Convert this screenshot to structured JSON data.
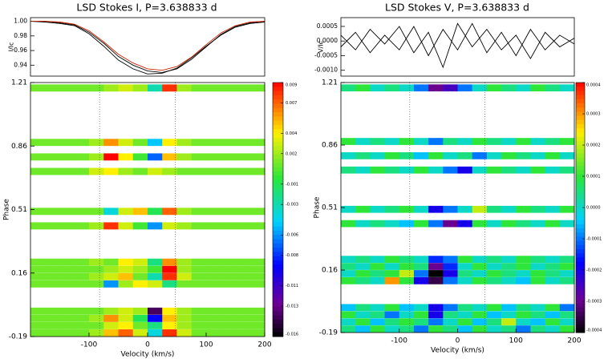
{
  "chart_data": [
    {
      "type": "line",
      "title": "LSD Stokes I, P=3.638833 d",
      "ylabel": "I/Ic",
      "x": [
        -200,
        -175,
        -150,
        -125,
        -100,
        -75,
        -50,
        -25,
        0,
        25,
        50,
        75,
        100,
        125,
        150,
        175,
        200
      ],
      "xlim": [
        -200,
        200
      ],
      "ylim": [
        0.925,
        1.005
      ],
      "yticks": [
        {
          "value": 1,
          "label": "1.00"
        },
        0.98,
        0.96,
        0.94
      ],
      "series": [
        {
          "color": "#000000",
          "values": [
            1.0,
            1.0,
            0.998,
            0.995,
            0.985,
            0.97,
            0.952,
            0.94,
            0.932,
            0.93,
            0.935,
            0.948,
            0.965,
            0.982,
            0.993,
            0.998,
            1.0
          ]
        },
        {
          "color": "#000000",
          "values": [
            1.0,
            0.999,
            0.997,
            0.994,
            0.983,
            0.966,
            0.947,
            0.935,
            0.928,
            0.929,
            0.936,
            0.95,
            0.966,
            0.981,
            0.992,
            0.997,
            0.999
          ]
        },
        {
          "color": "#cc2200",
          "values": [
            1.0,
            1.0,
            0.999,
            0.996,
            0.987,
            0.972,
            0.955,
            0.943,
            0.935,
            0.933,
            0.938,
            0.951,
            0.968,
            0.984,
            0.994,
            0.999,
            1.0
          ]
        }
      ]
    },
    {
      "type": "heatmap",
      "xlabel": "Velocity (km/s)",
      "ylabel": "Phase",
      "xlim": [
        -200,
        200
      ],
      "xticks": [
        -100,
        0,
        100,
        200
      ],
      "ylim": [
        -0.19,
        1.21
      ],
      "yticks": [
        -0.19,
        0.16,
        0.51,
        0.86,
        1.21
      ],
      "vlines": [
        -82,
        47
      ],
      "zlim": [
        -0.016,
        0.009
      ],
      "zticks": [
        0.009,
        0.007,
        0.004,
        0.002,
        -0.001,
        -0.003,
        -0.006,
        -0.008,
        -0.011,
        -0.013,
        -0.016
      ],
      "x": [
        -187.5,
        -162.5,
        -137.5,
        -112.5,
        -87.5,
        -62.5,
        -37.5,
        -12.5,
        12.5,
        37.5,
        62.5,
        87.5,
        112.5,
        137.5,
        162.5,
        187.5
      ],
      "phases": [
        -0.17,
        -0.13,
        -0.09,
        -0.05,
        0.1,
        0.14,
        0.18,
        0.22,
        0.42,
        0.5,
        0.72,
        0.8,
        0.88,
        1.18
      ],
      "z": [
        [
          0.001,
          0.001,
          0.001,
          0.001,
          0.002,
          0.005,
          0.007,
          0.003,
          -0.004,
          0.008,
          0.003,
          0.001,
          0.001,
          0.001,
          0.001,
          0.001
        ],
        [
          0.001,
          0.001,
          0.001,
          0.001,
          0.001,
          0.003,
          0.004,
          0.001,
          -0.002,
          0.004,
          0.002,
          0.001,
          0.001,
          0.001,
          0.001,
          0.001
        ],
        [
          0.001,
          0.001,
          0.001,
          0.001,
          0.002,
          0.006,
          0.003,
          -0.001,
          -0.009,
          0.005,
          0.002,
          0.001,
          0.001,
          0.001,
          0.001,
          0.001
        ],
        [
          0.001,
          0.001,
          0.001,
          0.001,
          0.001,
          0.002,
          0.003,
          0.002,
          -0.014,
          0.004,
          0.002,
          0.001,
          0.001,
          0.001,
          0.001,
          0.001
        ],
        [
          0.001,
          0.001,
          0.001,
          0.001,
          0.001,
          -0.006,
          0.002,
          0.004,
          0.003,
          -0.002,
          0.001,
          0.001,
          0.001,
          0.001,
          0.001,
          0.001
        ],
        [
          0.001,
          0.001,
          0.001,
          0.001,
          0.002,
          0.003,
          0.005,
          0.001,
          -0.003,
          0.008,
          0.003,
          0.001,
          0.001,
          0.001,
          0.001,
          0.001
        ],
        [
          0.001,
          0.001,
          0.001,
          0.001,
          0.001,
          0.002,
          0.003,
          0.002,
          0.0,
          0.009,
          0.002,
          0.001,
          0.001,
          0.001,
          0.001,
          0.001
        ],
        [
          0.001,
          0.001,
          0.001,
          0.001,
          0.002,
          0.001,
          0.004,
          0.003,
          -0.002,
          0.006,
          0.002,
          0.001,
          0.001,
          0.001,
          0.001,
          0.001
        ],
        [
          0.001,
          0.001,
          0.001,
          0.001,
          0.002,
          0.008,
          0.003,
          0.0,
          -0.006,
          0.003,
          0.002,
          0.001,
          0.001,
          0.001,
          0.001,
          0.001
        ],
        [
          0.001,
          0.001,
          0.001,
          0.001,
          0.001,
          -0.004,
          0.003,
          0.005,
          -0.001,
          0.007,
          0.002,
          0.001,
          0.001,
          0.001,
          0.001,
          0.001
        ],
        [
          0.001,
          0.001,
          0.001,
          0.001,
          0.003,
          0.004,
          0.002,
          0.001,
          0.003,
          0.002,
          0.001,
          0.001,
          0.001,
          0.001,
          0.001,
          0.001
        ],
        [
          0.001,
          0.001,
          0.001,
          0.001,
          0.002,
          0.009,
          0.004,
          0.0,
          -0.007,
          0.005,
          0.002,
          0.001,
          0.001,
          0.001,
          0.001,
          0.001
        ],
        [
          0.001,
          0.001,
          0.001,
          0.001,
          0.002,
          0.006,
          0.003,
          0.001,
          -0.005,
          0.004,
          0.002,
          0.001,
          0.001,
          0.001,
          0.001,
          0.001
        ],
        [
          0.001,
          0.001,
          0.001,
          0.001,
          0.001,
          0.002,
          0.003,
          0.002,
          -0.003,
          0.008,
          0.002,
          0.001,
          0.001,
          0.001,
          0.001,
          0.001
        ]
      ]
    },
    {
      "type": "line",
      "title": "LSD Stokes V, P=3.638833 d",
      "ylabel": "V/Ic",
      "x": [
        -200,
        -175,
        -150,
        -125,
        -100,
        -75,
        -50,
        -25,
        0,
        25,
        50,
        75,
        100,
        125,
        150,
        175,
        200
      ],
      "xlim": [
        -200,
        200
      ],
      "ylim": [
        -0.0012,
        0.0008
      ],
      "yticks": [
        0.0005,
        {
          "value": 0,
          "label": "0.0000"
        },
        -0.0005,
        {
          "value": -0.001,
          "label": "-0.0010"
        }
      ],
      "series": [
        {
          "color": "#000000",
          "values": [
            0.0002,
            -0.0003,
            0.0004,
            -0.0001,
            0.0005,
            -0.0004,
            0.0003,
            -0.0009,
            0.0006,
            -0.0002,
            0.0004,
            -0.0003,
            0.0002,
            -0.0006,
            0.0003,
            -0.0002,
            0.0001
          ]
        },
        {
          "color": "#000000",
          "values": [
            -0.0002,
            0.0003,
            -0.0004,
            0.0002,
            -0.0003,
            0.0005,
            -0.0005,
            0.0004,
            -0.0003,
            0.0006,
            -0.0004,
            0.0003,
            -0.0005,
            0.0004,
            -0.0003,
            0.0002,
            -0.0001
          ]
        }
      ]
    },
    {
      "type": "heatmap",
      "xlabel": "Velocity (km/s)",
      "ylabel": "Phase",
      "xlim": [
        -200,
        200
      ],
      "xticks": [
        -100,
        0,
        100,
        200
      ],
      "ylim": [
        -0.19,
        1.21
      ],
      "yticks": [
        -0.19,
        0.16,
        0.51,
        0.86,
        1.21
      ],
      "vlines": [
        -82,
        47
      ],
      "zlim": [
        -0.0004,
        0.0004
      ],
      "zticks": [
        0.0004,
        0.0003,
        0.0002,
        0.0001,
        {
          "value": 0,
          "label": "0.0000"
        },
        -0.0001,
        -0.0002,
        -0.0003,
        -0.0004
      ],
      "x": [
        -187.5,
        -162.5,
        -137.5,
        -112.5,
        -87.5,
        -62.5,
        -37.5,
        -12.5,
        12.5,
        37.5,
        62.5,
        87.5,
        112.5,
        137.5,
        162.5,
        187.5
      ],
      "phases": [
        -0.17,
        -0.13,
        -0.09,
        -0.05,
        0.1,
        0.14,
        0.18,
        0.22,
        0.42,
        0.5,
        0.72,
        0.8,
        0.88,
        1.18
      ],
      "z": [
        [
          5e-05,
          -5e-05,
          0.0001,
          0,
          5e-05,
          -0.0001,
          0.0001,
          5e-05,
          -5e-05,
          0.0001,
          0,
          5e-05,
          -0.0001,
          5e-05,
          0,
          0.0001
        ],
        [
          0,
          0.0001,
          -5e-05,
          5e-05,
          0.0001,
          5e-05,
          -0.0001,
          0,
          0.0001,
          -5e-05,
          5e-05,
          0.0002,
          0,
          -5e-05,
          0.0001,
          0
        ],
        [
          0.0001,
          0,
          5e-05,
          -0.0001,
          0,
          0.0001,
          -0.0002,
          5e-05,
          0,
          0.0001,
          -5e-05,
          0,
          0.0001,
          5e-05,
          -5e-05,
          5e-05
        ],
        [
          -5e-05,
          5e-05,
          0,
          0.0001,
          -5e-05,
          0,
          -0.0002,
          -0.0001,
          5e-05,
          0,
          0.0001,
          -5e-05,
          5e-05,
          0,
          0.0001,
          -0.0001
        ],
        [
          0.0001,
          5e-05,
          0,
          0.0003,
          0.0001,
          -0.0002,
          -0.00035,
          -0.0001,
          0,
          0.0001,
          5e-05,
          0,
          -5e-05,
          0.0001,
          0,
          5e-05
        ],
        [
          0,
          0.0001,
          5e-05,
          0.0001,
          0.0002,
          -0.0001,
          -0.0004,
          -0.0002,
          5e-05,
          0,
          0.0001,
          5e-05,
          0,
          0.0001,
          5e-05,
          0
        ],
        [
          5e-05,
          0,
          0.0001,
          0,
          0.0001,
          5e-05,
          -0.0003,
          -0.00015,
          0,
          0.0001,
          0,
          5e-05,
          0.0001,
          0,
          5e-05,
          0.0001
        ],
        [
          0,
          5e-05,
          0,
          0.0001,
          5e-05,
          0,
          -0.00015,
          -0.0001,
          0.0001,
          0,
          5e-05,
          0,
          0.0001,
          5e-05,
          0,
          5e-05
        ],
        [
          0.0001,
          0,
          5e-05,
          0,
          -5e-05,
          0.0001,
          -0.0001,
          -0.0003,
          -0.0002,
          0.0001,
          0,
          0.0001,
          5e-05,
          0,
          0.0001,
          0
        ],
        [
          0,
          0.0001,
          0,
          5e-05,
          0.0001,
          0,
          -0.0002,
          -0.0001,
          0,
          0.0002,
          5e-05,
          0,
          0.0001,
          5e-05,
          0,
          0.0001
        ],
        [
          5e-05,
          0,
          0.0001,
          5e-05,
          0,
          0.0001,
          0,
          -0.0001,
          -0.0002,
          0,
          0.0001,
          5e-05,
          0,
          0.0001,
          0,
          5e-05
        ],
        [
          0,
          5e-05,
          0,
          0.0001,
          5e-05,
          -5e-05,
          0.0001,
          0,
          5e-05,
          -0.0001,
          0,
          0.0001,
          5e-05,
          0,
          0.0001,
          0
        ],
        [
          0.0001,
          0,
          5e-05,
          0,
          0.0001,
          0,
          -0.0001,
          5e-05,
          0,
          0.0001,
          5e-05,
          0,
          0.0001,
          0,
          5e-05,
          0.0001
        ],
        [
          5e-05,
          0.0001,
          0,
          5e-05,
          0,
          -0.0001,
          -0.0003,
          -0.00025,
          -0.0001,
          0,
          0.0001,
          5e-05,
          0,
          0.0001,
          5e-05,
          0
        ]
      ]
    }
  ]
}
